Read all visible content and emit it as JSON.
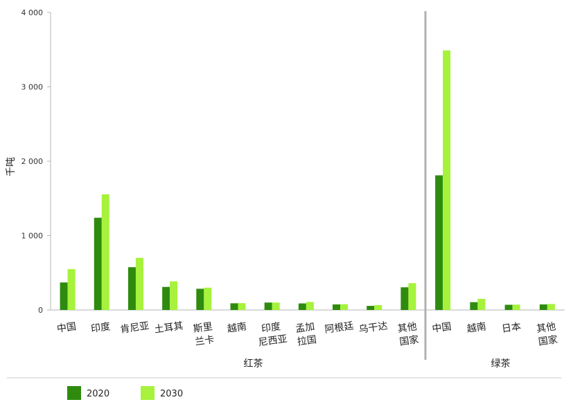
{
  "chart_data": {
    "type": "bar",
    "ylabel": "千吨",
    "ylim": [
      0,
      4000
    ],
    "yticks": [
      0,
      1000,
      2000,
      3000,
      4000
    ],
    "ytick_labels": [
      "0",
      "1 000",
      "2 000",
      "3 000",
      "4 000"
    ],
    "grid": false,
    "legend_position": "bottom-left",
    "groups": [
      {
        "name": "红茶",
        "categories": [
          [
            "中国"
          ],
          [
            "印度"
          ],
          [
            "肯尼亚"
          ],
          [
            "土耳其"
          ],
          [
            "斯里",
            "兰卡"
          ],
          [
            "越南"
          ],
          [
            "印度",
            "尼西亚"
          ],
          [
            "孟加",
            "拉国"
          ],
          [
            "阿根廷"
          ],
          [
            "乌干达"
          ],
          [
            "其他",
            "国家"
          ]
        ],
        "series": [
          {
            "name": "2020",
            "values": [
              370,
              1240,
              575,
              310,
              285,
              90,
              100,
              88,
              75,
              55,
              305
            ]
          },
          {
            "name": "2030",
            "values": [
              550,
              1555,
              700,
              385,
              300,
              92,
              100,
              108,
              78,
              65,
              360
            ]
          }
        ]
      },
      {
        "name": "绿茶",
        "categories": [
          [
            "中国"
          ],
          [
            "越南"
          ],
          [
            "日本"
          ],
          [
            "其他",
            "国家"
          ]
        ],
        "series": [
          {
            "name": "2020",
            "values": [
              1810,
              105,
              70,
              75
            ]
          },
          {
            "name": "2030",
            "values": [
              3490,
              150,
              72,
              80
            ]
          }
        ]
      }
    ],
    "legend": [
      {
        "name": "2020",
        "color": "#2e8b0e"
      },
      {
        "name": "2030",
        "color": "#a6f23c"
      }
    ]
  }
}
